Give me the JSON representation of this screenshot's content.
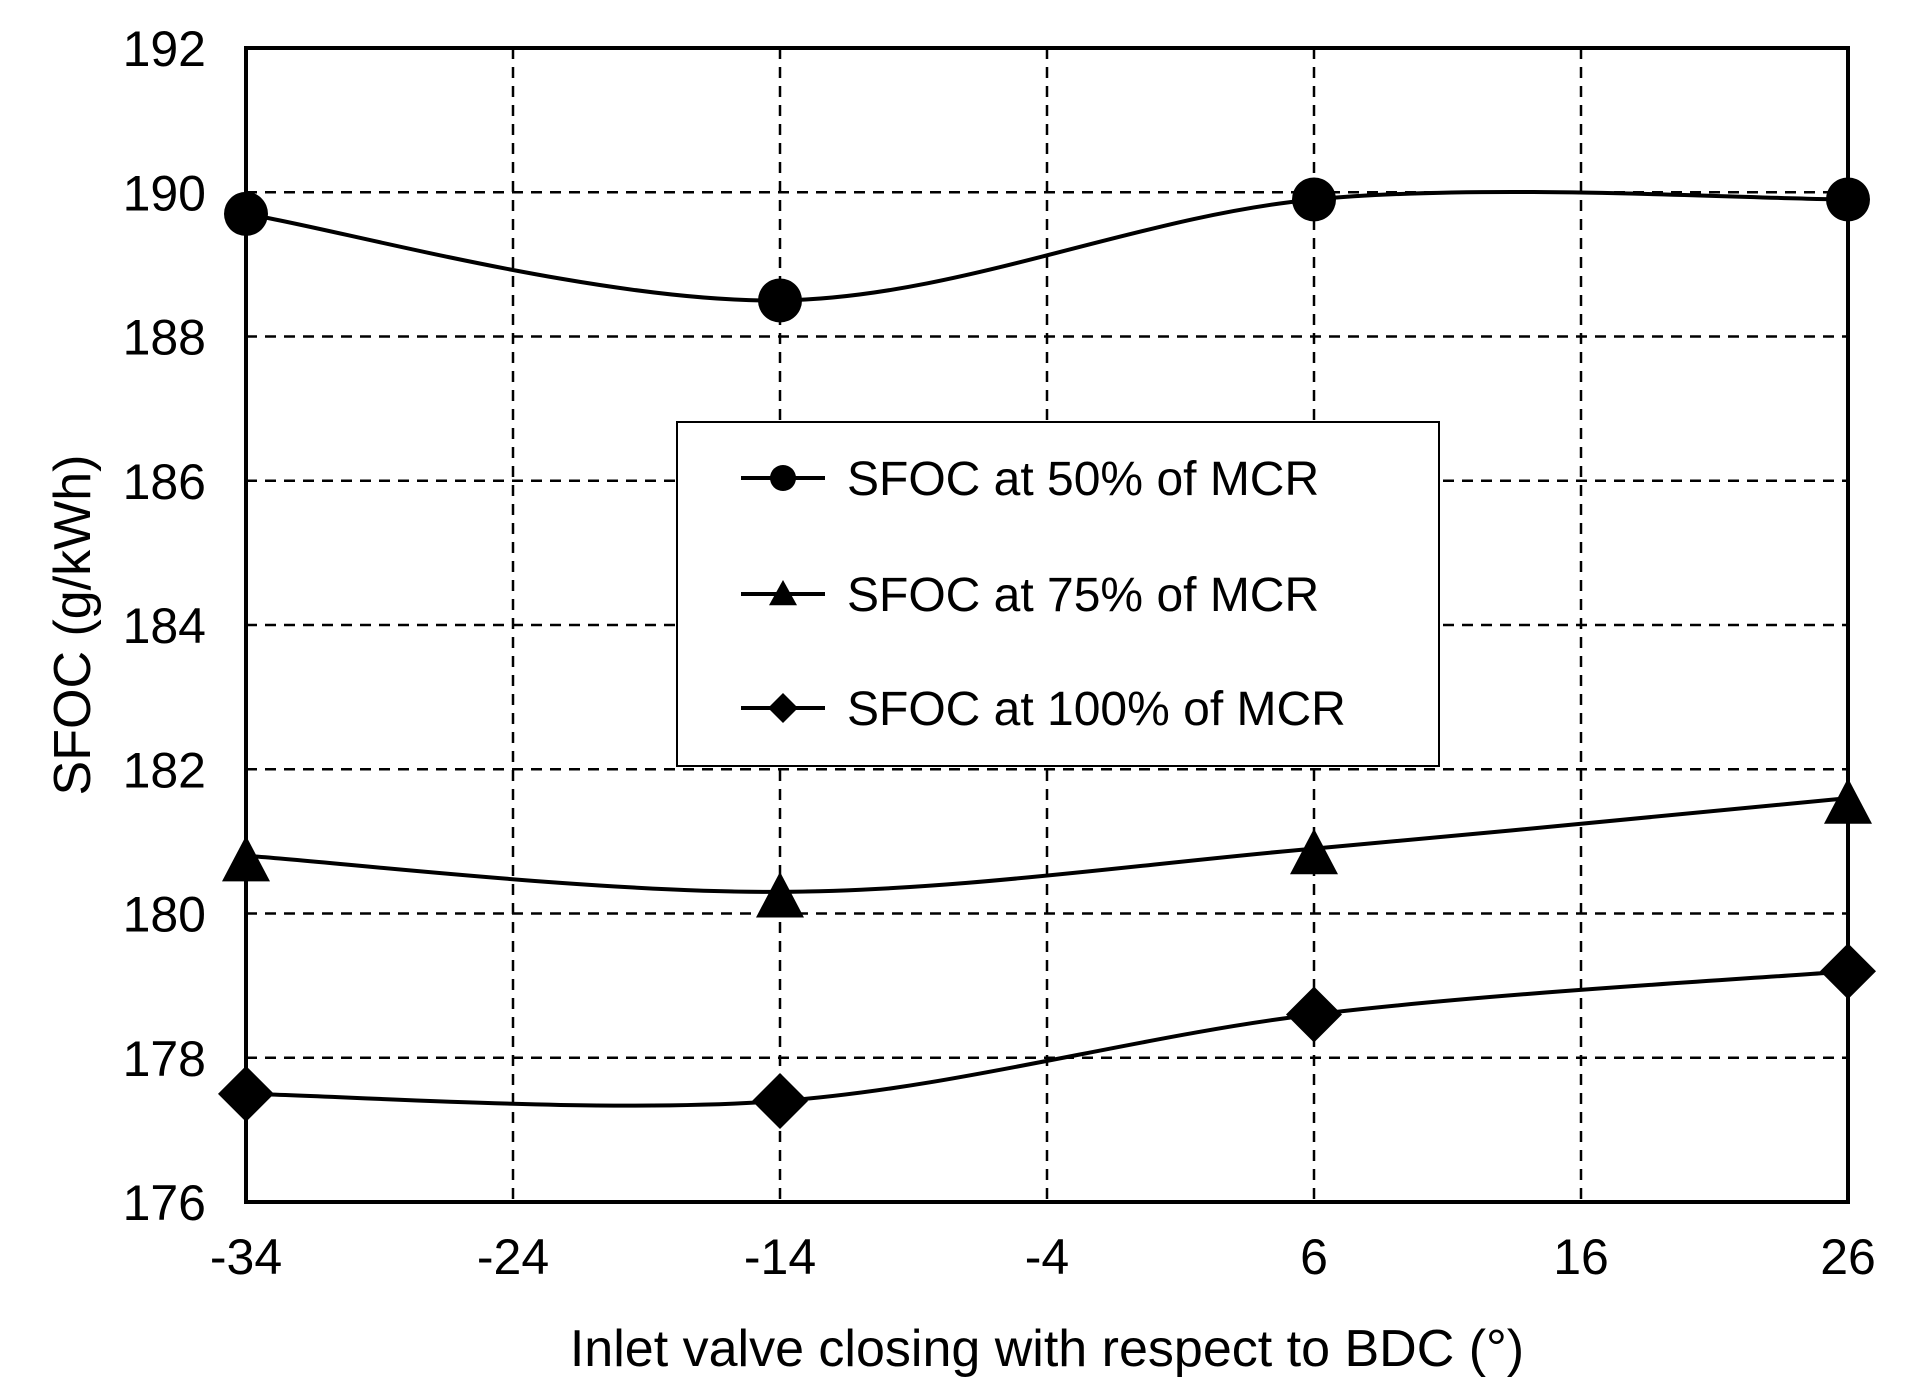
{
  "chart_data": {
    "type": "line",
    "title": "",
    "xlabel": "Inlet valve closing with respect to BDC (°)",
    "ylabel": "SFOC (g/kWh)",
    "x": [
      -34,
      -14,
      6,
      26
    ],
    "xlim": [
      -34,
      26
    ],
    "ylim": [
      176,
      192
    ],
    "xticks": [
      -34,
      -24,
      -14,
      -4,
      6,
      16,
      26
    ],
    "yticks": [
      176,
      178,
      180,
      182,
      184,
      186,
      188,
      190,
      192
    ],
    "grid": true,
    "legend_position": "center",
    "series": [
      {
        "name": "SFOC at 50% of MCR",
        "marker": "circle",
        "values": [
          189.7,
          188.5,
          189.9,
          189.9
        ]
      },
      {
        "name": "SFOC at 75% of MCR",
        "marker": "triangle",
        "values": [
          180.8,
          180.3,
          180.9,
          181.6
        ]
      },
      {
        "name": "SFOC at 100% of MCR",
        "marker": "diamond",
        "values": [
          177.5,
          177.4,
          178.6,
          179.2
        ]
      }
    ]
  }
}
